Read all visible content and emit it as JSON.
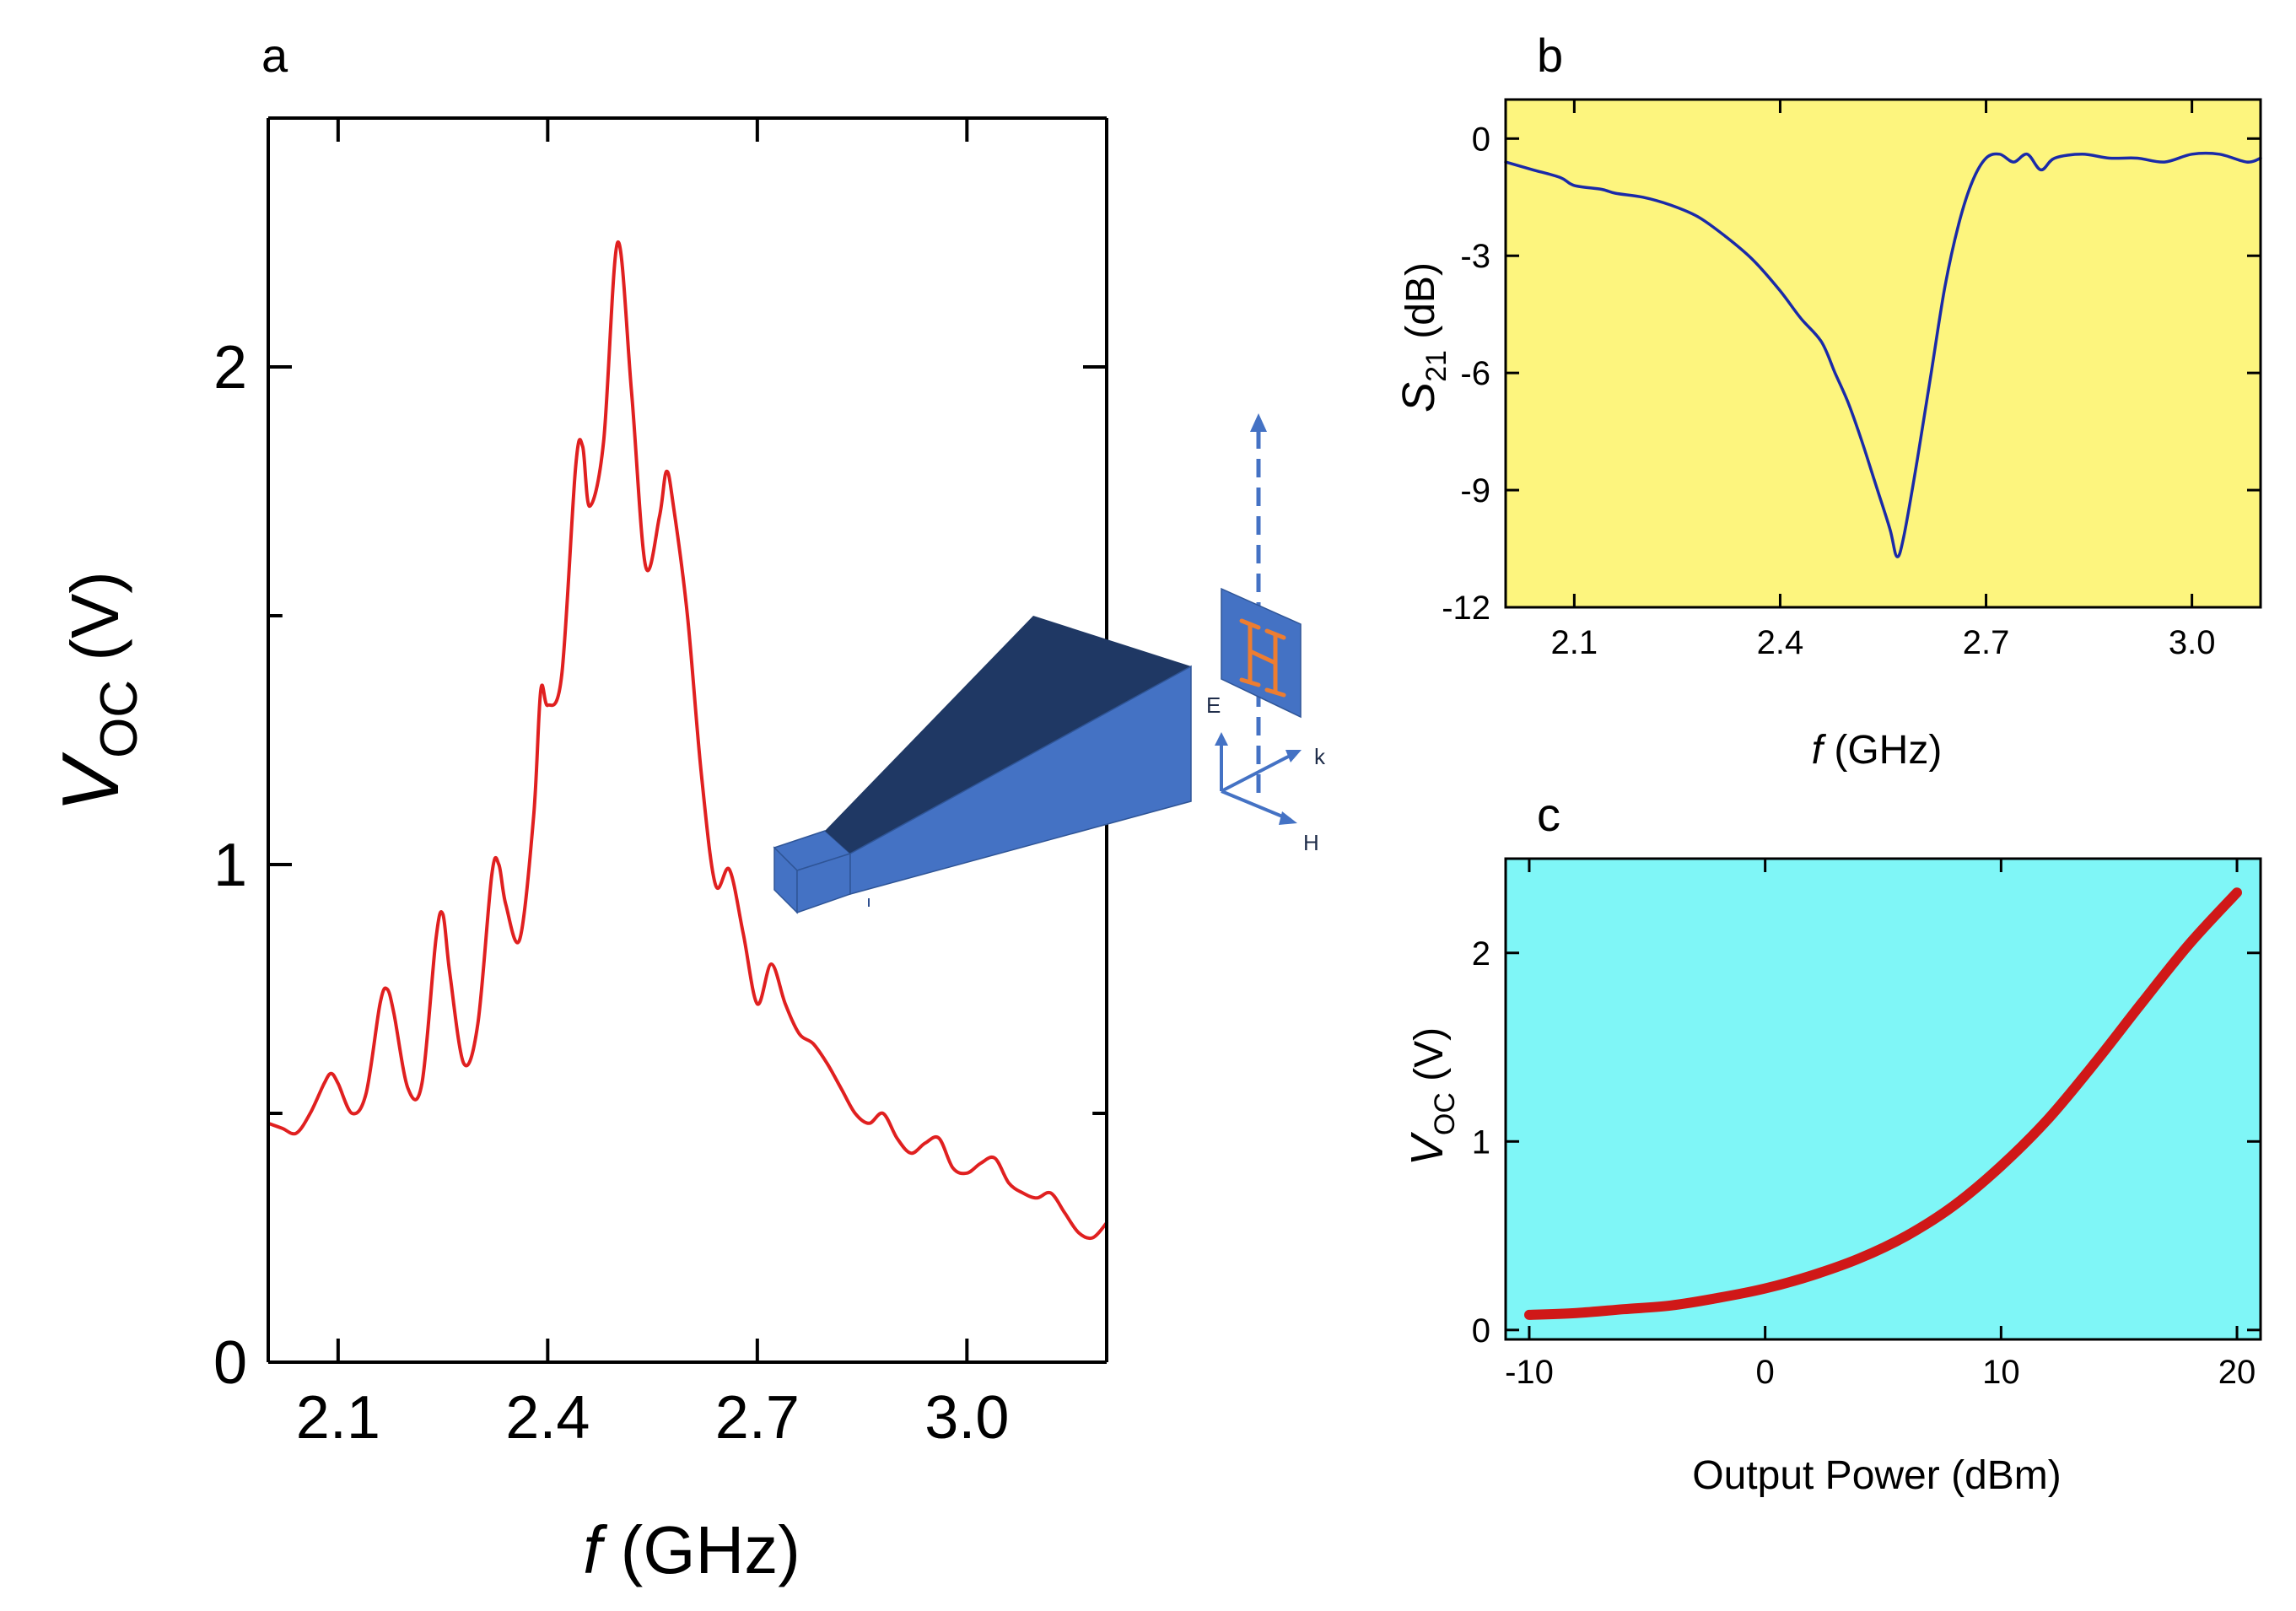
{
  "colors": {
    "curve_a": "#e02020",
    "curve_b": "#1a2aa8",
    "curve_c": "#d01818",
    "bg_b": "#fdf57e",
    "bg_c": "#7ff6f7",
    "horn_light": "#4472c4",
    "horn_dark": "#1f3864",
    "antenna": "#ed7d31"
  },
  "chart_data": [
    {
      "panel": "a",
      "type": "line",
      "xlabel_italic": "f",
      "xlabel_rest": " (GHz)",
      "ylabel_main": "V",
      "ylabel_sub": "OC",
      "ylabel_rest": " (V)",
      "xlim": [
        2.0,
        3.2
      ],
      "ylim": [
        0,
        2.5
      ],
      "xticks": [
        2.1,
        2.4,
        2.7,
        3.0
      ],
      "xtick_labels": [
        "2.1",
        "2.4",
        "2.7",
        "3.0"
      ],
      "yticks": [
        0,
        1,
        2
      ],
      "ytick_labels": [
        "0",
        "1",
        "2"
      ],
      "series": [
        {
          "name": "Voc",
          "x": [
            2.0,
            2.02,
            2.04,
            2.06,
            2.08,
            2.09,
            2.1,
            2.12,
            2.14,
            2.16,
            2.17,
            2.18,
            2.2,
            2.22,
            2.24,
            2.25,
            2.26,
            2.28,
            2.3,
            2.32,
            2.33,
            2.34,
            2.36,
            2.38,
            2.39,
            2.4,
            2.42,
            2.44,
            2.45,
            2.46,
            2.48,
            2.5,
            2.52,
            2.54,
            2.56,
            2.57,
            2.58,
            2.6,
            2.62,
            2.64,
            2.66,
            2.68,
            2.7,
            2.72,
            2.74,
            2.76,
            2.78,
            2.8,
            2.82,
            2.84,
            2.86,
            2.88,
            2.9,
            2.92,
            2.94,
            2.96,
            2.98,
            3.0,
            3.02,
            3.04,
            3.06,
            3.08,
            3.1,
            3.12,
            3.14,
            3.16,
            3.18,
            3.2
          ],
          "y": [
            0.48,
            0.47,
            0.46,
            0.5,
            0.56,
            0.58,
            0.56,
            0.5,
            0.54,
            0.72,
            0.75,
            0.7,
            0.55,
            0.56,
            0.85,
            0.9,
            0.78,
            0.6,
            0.68,
            0.98,
            1.0,
            0.92,
            0.85,
            1.1,
            1.35,
            1.32,
            1.38,
            1.8,
            1.84,
            1.72,
            1.85,
            2.25,
            1.95,
            1.6,
            1.7,
            1.79,
            1.72,
            1.5,
            1.18,
            0.96,
            0.99,
            0.86,
            0.72,
            0.8,
            0.72,
            0.66,
            0.64,
            0.6,
            0.55,
            0.5,
            0.48,
            0.5,
            0.45,
            0.42,
            0.44,
            0.45,
            0.39,
            0.38,
            0.4,
            0.41,
            0.36,
            0.34,
            0.33,
            0.34,
            0.3,
            0.26,
            0.25,
            0.28
          ]
        }
      ]
    },
    {
      "panel": "b",
      "type": "line",
      "xlabel_italic": "f",
      "xlabel_rest": " (GHz)",
      "ylabel_main": "S",
      "ylabel_sub": "21",
      "ylabel_rest": " (dB)",
      "xlim": [
        2.0,
        3.1
      ],
      "ylim": [
        -12,
        1
      ],
      "xticks": [
        2.1,
        2.4,
        2.7,
        3.0
      ],
      "xtick_labels": [
        "2.1",
        "2.4",
        "2.7",
        "3.0"
      ],
      "yticks": [
        0,
        -3,
        -6,
        -9,
        -12
      ],
      "ytick_labels": [
        "0",
        "-3",
        "-6",
        "-9",
        "-12"
      ],
      "series": [
        {
          "name": "S21",
          "x": [
            2.0,
            2.04,
            2.08,
            2.1,
            2.14,
            2.16,
            2.2,
            2.24,
            2.28,
            2.32,
            2.36,
            2.4,
            2.43,
            2.46,
            2.48,
            2.5,
            2.52,
            2.54,
            2.56,
            2.57,
            2.58,
            2.6,
            2.62,
            2.64,
            2.66,
            2.68,
            2.7,
            2.72,
            2.74,
            2.76,
            2.78,
            2.8,
            2.84,
            2.88,
            2.92,
            2.96,
            3.0,
            3.04,
            3.08,
            3.1
          ],
          "y": [
            -0.6,
            -0.8,
            -1.0,
            -1.2,
            -1.3,
            -1.4,
            -1.5,
            -1.7,
            -2.0,
            -2.5,
            -3.1,
            -3.9,
            -4.6,
            -5.2,
            -6.0,
            -6.8,
            -7.8,
            -8.9,
            -10.0,
            -10.7,
            -10.2,
            -8.2,
            -6.0,
            -3.8,
            -2.2,
            -1.1,
            -0.5,
            -0.4,
            -0.6,
            -0.4,
            -0.8,
            -0.5,
            -0.4,
            -0.5,
            -0.5,
            -0.6,
            -0.4,
            -0.4,
            -0.6,
            -0.5
          ]
        }
      ]
    },
    {
      "panel": "c",
      "type": "line",
      "xlabel": "Output Power (dBm)",
      "ylabel_main": "V",
      "ylabel_sub": "OC",
      "ylabel_rest": " (V)",
      "xlim": [
        -11,
        21
      ],
      "ylim": [
        -0.05,
        2.5
      ],
      "xticks": [
        -10,
        0,
        10,
        20
      ],
      "xtick_labels": [
        "-10",
        "0",
        "10",
        "20"
      ],
      "yticks": [
        0,
        1,
        2
      ],
      "ytick_labels": [
        "0",
        "1",
        "2"
      ],
      "series": [
        {
          "name": "Voc",
          "x": [
            -10,
            -8,
            -6,
            -4,
            -2,
            0,
            2,
            4,
            6,
            8,
            10,
            12,
            14,
            16,
            18,
            20
          ],
          "y": [
            0.08,
            0.09,
            0.11,
            0.13,
            0.17,
            0.22,
            0.29,
            0.38,
            0.5,
            0.66,
            0.87,
            1.12,
            1.42,
            1.74,
            2.05,
            2.32
          ]
        }
      ]
    }
  ],
  "panel_labels": [
    "a",
    "b",
    "c"
  ],
  "inset": {
    "label_E": "E",
    "label_k": "k",
    "label_H": "H"
  }
}
